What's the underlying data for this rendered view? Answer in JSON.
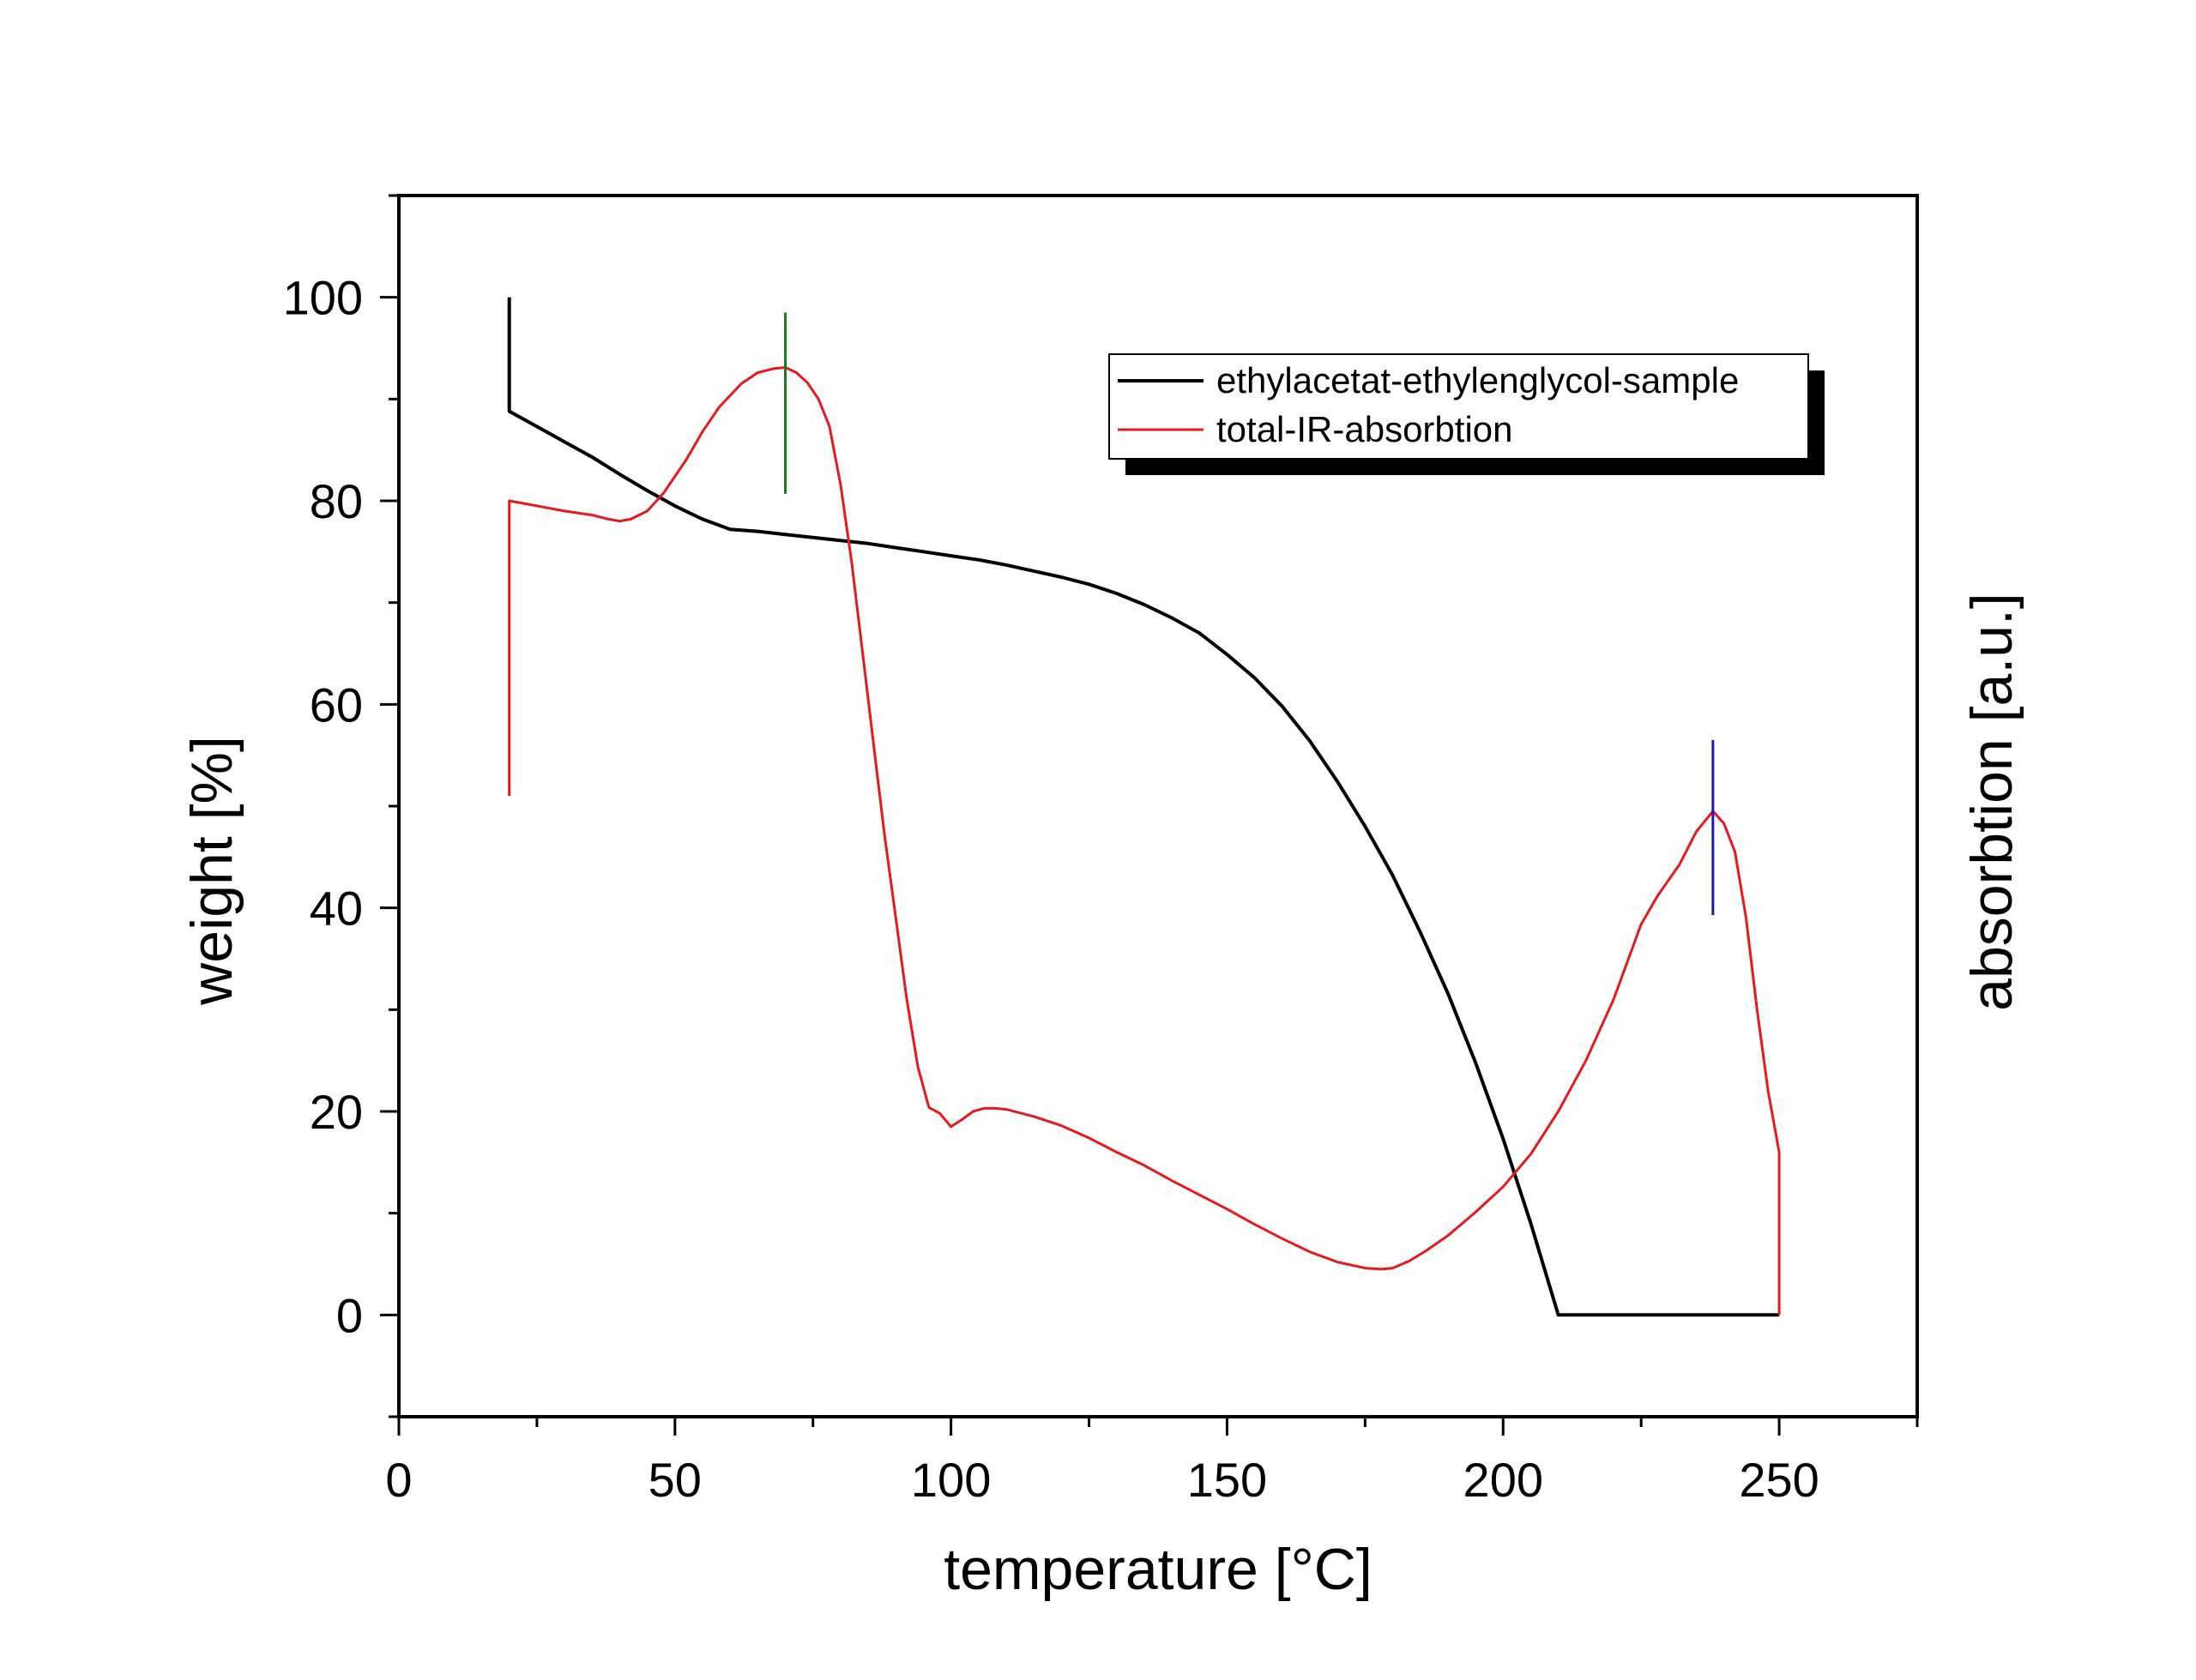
{
  "chart_data": {
    "type": "line",
    "title": "",
    "xlabel": "temperature [°C]",
    "ylabel": "weight [%]",
    "y2label": "absorbtion [a.u.]",
    "xlim": [
      0,
      275
    ],
    "ylim": [
      -10,
      110
    ],
    "xticks": [
      0,
      50,
      100,
      150,
      200,
      250
    ],
    "yticks": [
      0,
      20,
      40,
      60,
      80,
      100
    ],
    "grid": false,
    "legend_position": "top-right",
    "series": [
      {
        "name": "ethylacetat-ethylenglycol-sample",
        "color": "#000000",
        "x": [
          20,
          20,
          25,
          30,
          35,
          40,
          45,
          50,
          55,
          60,
          65,
          70,
          75,
          80,
          85,
          90,
          95,
          100,
          105,
          110,
          115,
          120,
          125,
          130,
          135,
          140,
          145,
          150,
          155,
          160,
          165,
          170,
          175,
          180,
          185,
          190,
          195,
          200,
          205,
          210,
          215,
          220,
          225,
          230,
          235,
          240,
          245,
          250
        ],
        "y": [
          100,
          88.8,
          87.3,
          85.8,
          84.3,
          82.6,
          81,
          79.5,
          78.2,
          77.2,
          77,
          76.7,
          76.4,
          76.1,
          75.8,
          75.4,
          75,
          74.6,
          74.2,
          73.7,
          73.1,
          72.5,
          71.8,
          70.9,
          69.8,
          68.5,
          67,
          64.9,
          62.6,
          59.8,
          56.4,
          52.4,
          48,
          43.2,
          37.6,
          31.6,
          24.8,
          17.3,
          9,
          0,
          0,
          0,
          0,
          0,
          0,
          0,
          0,
          0
        ]
      },
      {
        "name": "total-IR-absorbtion",
        "color": "#e8191c",
        "x": [
          20,
          20,
          25,
          30,
          35,
          38,
          40,
          42,
          45,
          48,
          52,
          55,
          58,
          62,
          65,
          68,
          70,
          72,
          74,
          76,
          78,
          80,
          82,
          84,
          86,
          88,
          90,
          92,
          94,
          96,
          98,
          100,
          102,
          104,
          106,
          108,
          110,
          115,
          120,
          125,
          130,
          135,
          140,
          145,
          150,
          155,
          160,
          165,
          170,
          175,
          178,
          180,
          183,
          186,
          190,
          195,
          200,
          205,
          210,
          215,
          220,
          225,
          228,
          232,
          235,
          238,
          240,
          242,
          244,
          246,
          248,
          250,
          250
        ],
        "y": [
          51,
          80,
          79.5,
          79,
          78.6,
          78.2,
          78,
          78.2,
          79,
          80.8,
          84,
          86.8,
          89.2,
          91.5,
          92.6,
          93,
          93.1,
          92.6,
          91.6,
          90,
          87.3,
          81.6,
          74,
          65,
          56,
          47,
          39,
          31,
          24.4,
          20.4,
          19.8,
          18.5,
          19.2,
          20,
          20.3,
          20.3,
          20.2,
          19.5,
          18.6,
          17.4,
          16,
          14.7,
          13.2,
          11.8,
          10.4,
          8.9,
          7.5,
          6.2,
          5.2,
          4.6,
          4.5,
          4.6,
          5.3,
          6.3,
          7.8,
          10.1,
          12.6,
          15.8,
          20,
          25,
          31,
          38.4,
          41.2,
          44.3,
          47.5,
          49.5,
          48.3,
          45.5,
          39,
          30,
          22,
          16,
          0
        ]
      }
    ],
    "markers": [
      {
        "x": 70,
        "y_from": 80.7,
        "y_to": 98.5,
        "color": "#1a7a1a"
      },
      {
        "x": 238,
        "y_from": 39.3,
        "y_to": 56.5,
        "color": "#1a1aa8"
      }
    ]
  }
}
